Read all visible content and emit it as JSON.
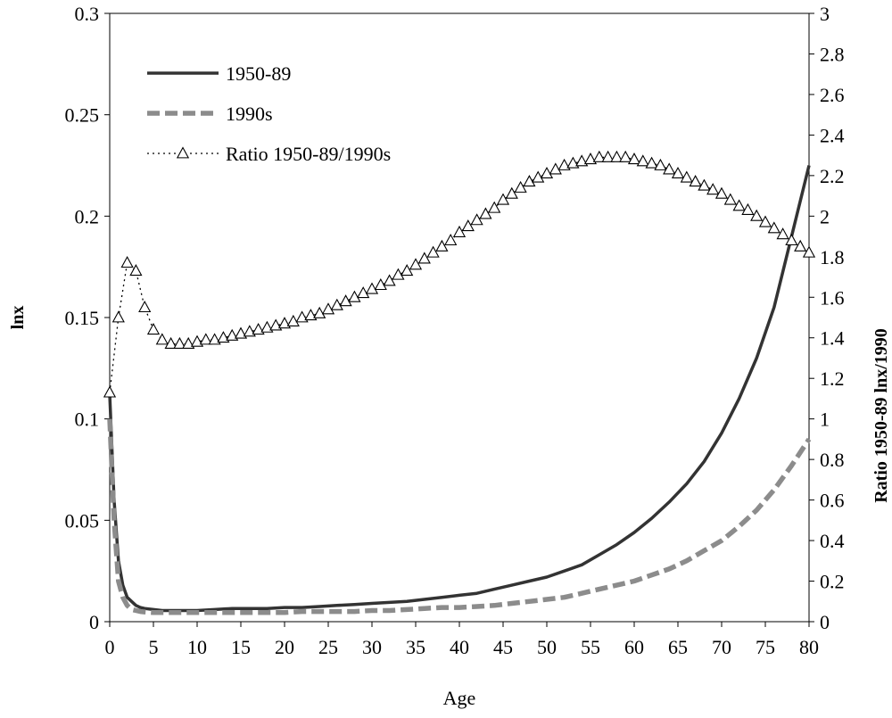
{
  "chart_data": {
    "type": "line",
    "xlabel": "Age",
    "ylabel": "lnx",
    "y2label": "Ratio 1950-89 lnx/1990",
    "xlim": [
      0,
      80
    ],
    "ylim": [
      0,
      0.3
    ],
    "y2lim": [
      0,
      3
    ],
    "x_ticks": [
      "0",
      "5",
      "10",
      "15",
      "20",
      "25",
      "30",
      "35",
      "40",
      "45",
      "50",
      "55",
      "60",
      "65",
      "70",
      "75",
      "80"
    ],
    "y_ticks": [
      "0",
      "0.05",
      "0.1",
      "0.15",
      "0.2",
      "0.25",
      "0.3"
    ],
    "y2_ticks": [
      "0",
      "0.2",
      "0.4",
      "0.6",
      "0.8",
      "1",
      "1.2",
      "1.4",
      "1.6",
      "1.8",
      "2",
      "2.2",
      "2.4",
      "2.6",
      "2.8",
      "3"
    ],
    "grid": false,
    "legend_placement": "top-left",
    "colors": {
      "series1": "#333333",
      "series2": "#8c8c8c",
      "series3": "#000000"
    },
    "series": [
      {
        "name": "1950-89",
        "axis": "left",
        "style": "solid",
        "x": [
          0,
          0.5,
          1,
          1.5,
          2,
          2.5,
          3,
          3.5,
          4,
          5,
          6,
          7,
          8,
          9,
          10,
          12,
          14,
          16,
          18,
          20,
          22,
          24,
          26,
          28,
          30,
          32,
          34,
          36,
          38,
          40,
          42,
          44,
          46,
          48,
          50,
          52,
          54,
          56,
          58,
          60,
          62,
          64,
          66,
          68,
          70,
          72,
          74,
          76,
          78,
          80
        ],
        "values": [
          0.112,
          0.06,
          0.03,
          0.018,
          0.012,
          0.01,
          0.008,
          0.007,
          0.0065,
          0.006,
          0.0055,
          0.0055,
          0.0055,
          0.0055,
          0.0055,
          0.006,
          0.0065,
          0.0065,
          0.0065,
          0.007,
          0.007,
          0.0075,
          0.008,
          0.0085,
          0.009,
          0.0095,
          0.01,
          0.011,
          0.012,
          0.013,
          0.014,
          0.016,
          0.018,
          0.02,
          0.022,
          0.025,
          0.028,
          0.033,
          0.038,
          0.044,
          0.051,
          0.059,
          0.068,
          0.079,
          0.093,
          0.11,
          0.13,
          0.155,
          0.19,
          0.225
        ]
      },
      {
        "name": "1990s",
        "axis": "left",
        "style": "dashed",
        "x": [
          0,
          0.5,
          1,
          1.5,
          2,
          2.5,
          3,
          3.5,
          4,
          5,
          6,
          7,
          8,
          9,
          10,
          12,
          14,
          16,
          18,
          20,
          22,
          24,
          26,
          28,
          30,
          32,
          34,
          36,
          38,
          40,
          42,
          44,
          46,
          48,
          50,
          52,
          54,
          56,
          58,
          60,
          62,
          64,
          66,
          68,
          70,
          72,
          74,
          76,
          78,
          80
        ],
        "values": [
          0.1,
          0.05,
          0.02,
          0.012,
          0.008,
          0.006,
          0.0055,
          0.005,
          0.0048,
          0.0045,
          0.0045,
          0.0045,
          0.0045,
          0.0045,
          0.0045,
          0.0045,
          0.0045,
          0.0045,
          0.0045,
          0.0045,
          0.005,
          0.005,
          0.005,
          0.005,
          0.0055,
          0.0055,
          0.006,
          0.0065,
          0.007,
          0.007,
          0.0075,
          0.008,
          0.009,
          0.01,
          0.011,
          0.012,
          0.014,
          0.016,
          0.018,
          0.02,
          0.023,
          0.026,
          0.03,
          0.035,
          0.04,
          0.047,
          0.055,
          0.065,
          0.077,
          0.09
        ]
      },
      {
        "name": "Ratio 1950-89/1990s",
        "axis": "right",
        "style": "dotted-triangles",
        "x": [
          0,
          1,
          2,
          3,
          4,
          5,
          6,
          7,
          8,
          9,
          10,
          11,
          12,
          13,
          14,
          15,
          16,
          17,
          18,
          19,
          20,
          21,
          22,
          23,
          24,
          25,
          26,
          27,
          28,
          29,
          30,
          31,
          32,
          33,
          34,
          35,
          36,
          37,
          38,
          39,
          40,
          41,
          42,
          43,
          44,
          45,
          46,
          47,
          48,
          49,
          50,
          51,
          52,
          53,
          54,
          55,
          56,
          57,
          58,
          59,
          60,
          61,
          62,
          63,
          64,
          65,
          66,
          67,
          68,
          69,
          70,
          71,
          72,
          73,
          74,
          75,
          76,
          77,
          78,
          79,
          80
        ],
        "values": [
          1.13,
          1.5,
          1.77,
          1.73,
          1.55,
          1.44,
          1.39,
          1.37,
          1.37,
          1.37,
          1.38,
          1.39,
          1.39,
          1.4,
          1.41,
          1.42,
          1.43,
          1.44,
          1.45,
          1.46,
          1.47,
          1.48,
          1.5,
          1.51,
          1.52,
          1.54,
          1.56,
          1.58,
          1.6,
          1.62,
          1.64,
          1.66,
          1.68,
          1.71,
          1.73,
          1.76,
          1.79,
          1.82,
          1.85,
          1.88,
          1.92,
          1.95,
          1.98,
          2.01,
          2.04,
          2.08,
          2.11,
          2.14,
          2.17,
          2.19,
          2.21,
          2.23,
          2.25,
          2.26,
          2.27,
          2.28,
          2.29,
          2.29,
          2.29,
          2.29,
          2.28,
          2.27,
          2.26,
          2.25,
          2.23,
          2.21,
          2.19,
          2.17,
          2.15,
          2.13,
          2.11,
          2.08,
          2.05,
          2.03,
          2.0,
          1.97,
          1.94,
          1.91,
          1.88,
          1.85,
          1.82
        ]
      }
    ]
  }
}
